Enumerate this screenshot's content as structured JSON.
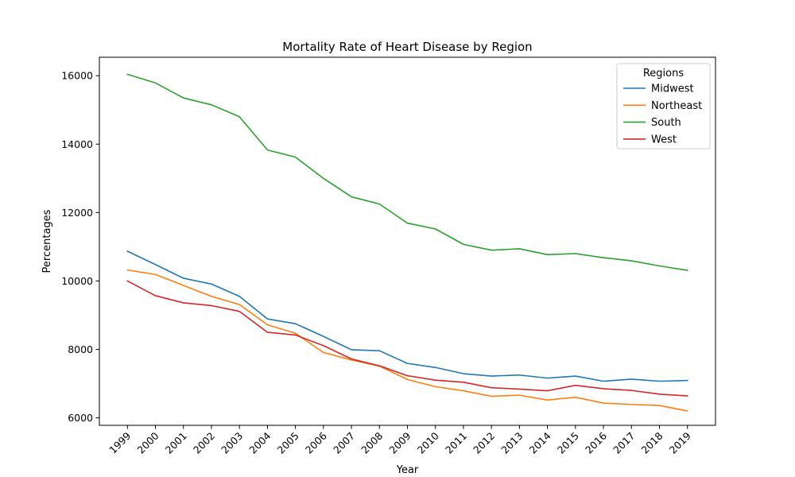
{
  "chart_data": {
    "type": "line",
    "title": "Mortality Rate of Heart Disease by Region",
    "xlabel": "Year",
    "ylabel": "Percentages",
    "x": [
      "1999",
      "2000",
      "2001",
      "2002",
      "2003",
      "2004",
      "2005",
      "2006",
      "2007",
      "2008",
      "2009",
      "2010",
      "2011",
      "2012",
      "2013",
      "2014",
      "2015",
      "2016",
      "2017",
      "2018",
      "2019"
    ],
    "ylim": [
      5780,
      16540
    ],
    "yticks": [
      6000,
      8000,
      10000,
      12000,
      14000,
      16000
    ],
    "grid": false,
    "legend": {
      "title": "Regions",
      "position": "top-right"
    },
    "series": [
      {
        "name": "Midwest",
        "color": "#1f77b4",
        "values": [
          10870,
          10480,
          10080,
          9910,
          9550,
          8890,
          8750,
          8380,
          7990,
          7960,
          7590,
          7470,
          7290,
          7220,
          7250,
          7160,
          7220,
          7070,
          7130,
          7070,
          7090
        ]
      },
      {
        "name": "Northeast",
        "color": "#ff7f0e",
        "values": [
          10320,
          10190,
          9870,
          9550,
          9310,
          8720,
          8470,
          7910,
          7690,
          7510,
          7120,
          6910,
          6790,
          6630,
          6660,
          6520,
          6600,
          6430,
          6390,
          6360,
          6200
        ]
      },
      {
        "name": "South",
        "color": "#2ca02c",
        "values": [
          16040,
          15790,
          15350,
          15150,
          14800,
          13830,
          13620,
          13000,
          12460,
          12250,
          11690,
          11520,
          11070,
          10900,
          10940,
          10770,
          10800,
          10680,
          10590,
          10440,
          10310
        ]
      },
      {
        "name": "West",
        "color": "#d62728",
        "values": [
          10000,
          9570,
          9360,
          9280,
          9110,
          8500,
          8420,
          8110,
          7720,
          7520,
          7230,
          7100,
          7040,
          6880,
          6840,
          6790,
          6950,
          6850,
          6800,
          6690,
          6640
        ]
      }
    ]
  }
}
